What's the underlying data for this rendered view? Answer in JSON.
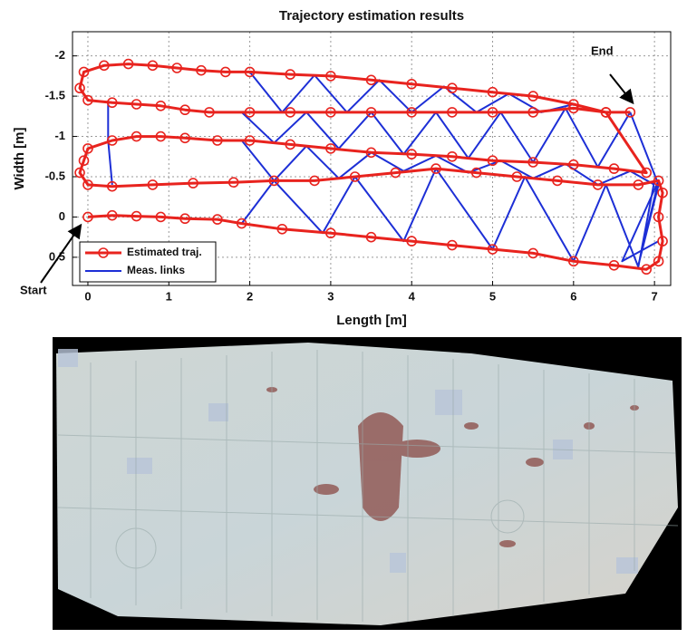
{
  "chart_data": {
    "type": "line",
    "title": "Trajectory estimation results",
    "xlabel": "Length [m]",
    "ylabel": "Width [m]",
    "annotations": [
      "Start",
      "End"
    ],
    "xlim": [
      -0.19,
      7.2
    ],
    "xticks": [
      0,
      1,
      2,
      3,
      4,
      5,
      6,
      7
    ],
    "ylim": [
      -2.3,
      0.85
    ],
    "y_inverted": true,
    "yticks": [
      -2,
      -1.5,
      -1,
      -0.5,
      0,
      0.5
    ],
    "grid": true,
    "legend": "lower left",
    "series": [
      {
        "name": "Estimated traj.",
        "color": "#e8231e",
        "marker": "circle",
        "x": [
          0,
          0.3,
          0.6,
          0.9,
          1.2,
          1.6,
          1.9,
          2.4,
          3,
          3.5,
          4,
          4.5,
          5,
          5.5,
          6,
          6.5,
          6.9,
          7.05,
          7.1,
          7.05,
          7.1,
          7.05,
          6.8,
          6.3,
          5.8,
          5.3,
          4.8,
          4.3,
          3.8,
          3.3,
          2.8,
          2.3,
          1.8,
          1.3,
          0.8,
          0.3,
          0,
          -0.1,
          -0.05,
          0,
          0.3,
          0.6,
          0.9,
          1.2,
          1.6,
          2,
          2.5,
          3,
          3.5,
          4,
          4.5,
          5,
          5.5,
          6,
          6.5,
          6.9,
          6.4,
          6,
          5.5,
          5,
          4.5,
          4,
          3.5,
          3,
          2.5,
          2,
          1.5,
          1.2,
          0.9,
          0.6,
          0.3,
          0,
          -0.1,
          -0.05,
          0.2,
          0.5,
          0.8,
          1.1,
          1.4,
          1.7,
          2,
          2.5,
          3,
          3.5,
          4,
          4.5,
          5,
          5.5,
          6,
          6.4,
          6.7
        ],
        "y": [
          0,
          -0.02,
          -0.01,
          0,
          0.02,
          0.03,
          0.08,
          0.15,
          0.2,
          0.25,
          0.3,
          0.35,
          0.4,
          0.45,
          0.55,
          0.6,
          0.65,
          0.55,
          0.3,
          0,
          -0.3,
          -0.45,
          -0.4,
          -0.4,
          -0.45,
          -0.5,
          -0.55,
          -0.6,
          -0.55,
          -0.5,
          -0.45,
          -0.45,
          -0.43,
          -0.42,
          -0.4,
          -0.38,
          -0.4,
          -0.55,
          -0.7,
          -0.85,
          -0.95,
          -1,
          -1,
          -0.98,
          -0.95,
          -0.95,
          -0.9,
          -0.85,
          -0.8,
          -0.78,
          -0.75,
          -0.7,
          -0.68,
          -0.65,
          -0.6,
          -0.55,
          -1.3,
          -1.35,
          -1.3,
          -1.3,
          -1.3,
          -1.3,
          -1.3,
          -1.3,
          -1.3,
          -1.3,
          -1.3,
          -1.33,
          -1.38,
          -1.4,
          -1.42,
          -1.45,
          -1.6,
          -1.8,
          -1.88,
          -1.9,
          -1.88,
          -1.85,
          -1.82,
          -1.8,
          -1.8,
          -1.77,
          -1.75,
          -1.7,
          -1.65,
          -1.6,
          -1.55,
          -1.5,
          -1.4,
          -1.3,
          -1.3
        ]
      },
      {
        "name": "Meas. links",
        "color": "#1d2fd6",
        "marker": "none",
        "x": [
          0.25,
          0.25,
          0.3,
          null,
          2,
          2.4,
          2.8,
          3.2,
          3.6,
          4,
          4.4,
          4.8,
          5.2,
          5.6,
          6,
          6.4,
          6.7,
          null,
          1.9,
          2.3,
          2.7,
          3.1,
          3.5,
          3.9,
          4.3,
          4.7,
          5.1,
          5.5,
          5.9,
          6.3,
          6.7,
          null,
          1.9,
          2.3,
          2.7,
          3.1,
          3.5,
          3.9,
          4.3,
          4.7,
          5.1,
          5.5,
          5.9,
          6.3,
          6.7,
          7,
          null,
          1.9,
          2.3,
          2.9,
          3.3,
          3.9,
          4.3,
          5,
          5.4,
          6,
          6.4,
          6.8,
          7,
          null,
          6.7,
          7.05,
          6.8,
          7.05,
          6.6,
          7.05
        ],
        "y": [
          -1.42,
          -0.95,
          -0.4,
          null,
          -1.8,
          -1.3,
          -1.76,
          -1.3,
          -1.7,
          -1.3,
          -1.62,
          -1.3,
          -1.53,
          -1.3,
          -1.4,
          -1.3,
          -1.3,
          null,
          -1.3,
          -0.92,
          -1.3,
          -0.85,
          -1.3,
          -0.78,
          -1.3,
          -0.73,
          -1.3,
          -0.68,
          -1.35,
          -0.62,
          -1.3,
          null,
          -0.95,
          -0.45,
          -0.88,
          -0.48,
          -0.8,
          -0.57,
          -0.76,
          -0.55,
          -0.7,
          -0.48,
          -0.66,
          -0.4,
          -0.57,
          -0.4,
          null,
          0.08,
          -0.45,
          0.2,
          -0.5,
          0.3,
          -0.6,
          0.4,
          -0.5,
          0.55,
          -0.4,
          0.62,
          -0.45,
          null,
          -1.3,
          -0.4,
          0.6,
          -0.45,
          0.55,
          0.3
        ]
      }
    ]
  }
}
